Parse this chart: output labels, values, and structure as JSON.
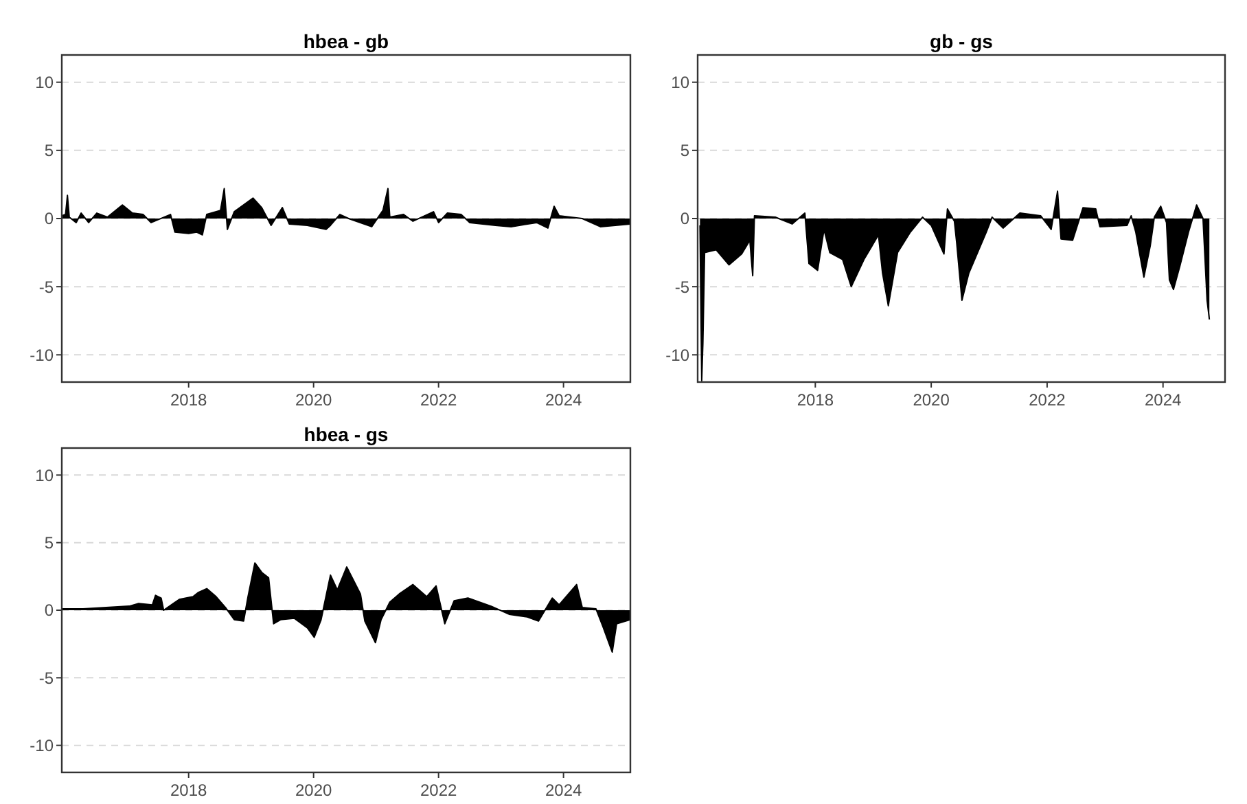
{
  "chart_data": [
    {
      "type": "area",
      "title": "hbea - gb",
      "color": "#000000",
      "grid": "y",
      "xlim": [
        2015.97,
        2025.07
      ],
      "ylim": [
        -12,
        12
      ],
      "xticks": [
        2018,
        2020,
        2022,
        2024
      ],
      "yticks": [
        -10,
        -5,
        0,
        5,
        10
      ],
      "x": [
        2015.97,
        2016.03,
        2016.06,
        2016.09,
        2016.2,
        2016.28,
        2016.4,
        2016.53,
        2016.7,
        2016.94,
        2017.1,
        2017.27,
        2017.4,
        2017.71,
        2017.78,
        2018.0,
        2018.13,
        2018.22,
        2018.29,
        2018.51,
        2018.57,
        2018.62,
        2018.73,
        2019.03,
        2019.17,
        2019.32,
        2019.5,
        2019.61,
        2019.9,
        2020.2,
        2020.27,
        2020.42,
        2020.56,
        2020.93,
        2021.11,
        2021.19,
        2021.22,
        2021.44,
        2021.59,
        2021.92,
        2022.0,
        2022.14,
        2022.36,
        2022.5,
        2022.91,
        2023.16,
        2023.57,
        2023.75,
        2023.85,
        2023.93,
        2024.3,
        2024.59,
        2025.07
      ],
      "values": [
        0.2,
        0.3,
        1.7,
        0.1,
        -0.3,
        0.4,
        -0.3,
        0.4,
        0.1,
        1.0,
        0.4,
        0.3,
        -0.3,
        0.3,
        -1.0,
        -1.1,
        -1.0,
        -1.2,
        0.3,
        0.6,
        2.2,
        -0.8,
        0.5,
        1.5,
        0.8,
        -0.5,
        0.8,
        -0.4,
        -0.5,
        -0.8,
        -0.5,
        0.3,
        0.0,
        -0.6,
        0.6,
        2.2,
        0.1,
        0.3,
        -0.2,
        0.5,
        -0.3,
        0.4,
        0.3,
        -0.3,
        -0.5,
        -0.6,
        -0.3,
        -0.7,
        0.9,
        0.2,
        0.0,
        -0.6,
        -0.4
      ]
    },
    {
      "type": "area",
      "title": "gb - gs",
      "color": "#000000",
      "grid": "y",
      "xlim": [
        2015.97,
        2025.07
      ],
      "ylim": [
        -12,
        12
      ],
      "xticks": [
        2018,
        2020,
        2022,
        2024
      ],
      "yticks": [
        -10,
        -5,
        0,
        5,
        10
      ],
      "x": [
        2016.01,
        2016.04,
        2016.06,
        2016.09,
        2016.29,
        2016.51,
        2016.73,
        2016.87,
        2016.92,
        2016.95,
        2017.31,
        2017.6,
        2017.82,
        2017.89,
        2018.04,
        2018.15,
        2018.25,
        2018.47,
        2018.62,
        2018.84,
        2019.09,
        2019.16,
        2019.26,
        2019.42,
        2019.64,
        2019.85,
        2020.0,
        2020.22,
        2020.28,
        2020.4,
        2020.44,
        2020.53,
        2020.65,
        2020.95,
        2021.05,
        2021.24,
        2021.53,
        2021.89,
        2022.07,
        2022.18,
        2022.24,
        2022.44,
        2022.62,
        2022.84,
        2022.91,
        2023.38,
        2023.45,
        2023.53,
        2023.67,
        2023.78,
        2023.85,
        2023.96,
        2024.06,
        2024.11,
        2024.18,
        2024.29,
        2024.44,
        2024.58,
        2024.69,
        2024.76,
        2024.8
      ],
      "values": [
        -0.5,
        -11.9,
        -9.2,
        -2.5,
        -2.3,
        -3.4,
        -2.6,
        -1.6,
        -4.2,
        0.2,
        0.1,
        -0.4,
        0.4,
        -3.3,
        -3.8,
        -0.8,
        -2.5,
        -3.0,
        -5.0,
        -3.0,
        -1.2,
        -4.0,
        -6.4,
        -2.5,
        -1.0,
        0.1,
        -0.5,
        -2.6,
        0.7,
        -0.2,
        -1.8,
        -6.0,
        -4.0,
        -1.0,
        0.1,
        -0.7,
        0.4,
        0.2,
        -0.8,
        2.0,
        -1.5,
        -1.6,
        0.8,
        0.7,
        -0.6,
        -0.5,
        0.2,
        -1.0,
        -4.3,
        -2.0,
        0.1,
        0.9,
        -0.3,
        -4.5,
        -5.2,
        -3.5,
        -1.0,
        1.0,
        0.0,
        -6.0,
        -7.4
      ]
    },
    {
      "type": "area",
      "title": "hbea - gs",
      "color": "#000000",
      "grid": "y",
      "xlim": [
        2015.97,
        2025.07
      ],
      "ylim": [
        -12,
        12
      ],
      "xticks": [
        2018,
        2020,
        2022,
        2024
      ],
      "yticks": [
        -10,
        -5,
        0,
        5,
        10
      ],
      "x": [
        2015.97,
        2016.31,
        2016.68,
        2017.05,
        2017.2,
        2017.42,
        2017.47,
        2017.56,
        2017.6,
        2017.85,
        2018.07,
        2018.15,
        2018.29,
        2018.44,
        2018.59,
        2018.73,
        2018.88,
        2018.95,
        2019.06,
        2019.17,
        2019.28,
        2019.36,
        2019.47,
        2019.69,
        2019.9,
        2020.01,
        2020.12,
        2020.27,
        2020.38,
        2020.53,
        2020.64,
        2020.75,
        2020.82,
        2020.99,
        2021.08,
        2021.22,
        2021.37,
        2021.59,
        2021.81,
        2021.96,
        2022.1,
        2022.25,
        2022.47,
        2022.84,
        2023.13,
        2023.42,
        2023.6,
        2023.82,
        2023.93,
        2024.21,
        2024.3,
        2024.52,
        2024.63,
        2024.78,
        2024.85,
        2025.07
      ],
      "values": [
        0.1,
        0.1,
        0.2,
        0.3,
        0.5,
        0.4,
        1.1,
        0.9,
        0.0,
        0.8,
        1.0,
        1.3,
        1.6,
        1.0,
        0.2,
        -0.7,
        -0.8,
        1.0,
        3.5,
        2.8,
        2.4,
        -1.0,
        -0.7,
        -0.6,
        -1.3,
        -2.0,
        -0.7,
        2.6,
        1.5,
        3.2,
        2.2,
        1.2,
        -0.8,
        -2.4,
        -0.7,
        0.6,
        1.2,
        1.9,
        1.0,
        1.8,
        -1.0,
        0.7,
        0.9,
        0.3,
        -0.3,
        -0.5,
        -0.8,
        0.9,
        0.4,
        1.9,
        0.2,
        0.1,
        -1.2,
        -3.1,
        -1.0,
        -0.7
      ]
    }
  ]
}
